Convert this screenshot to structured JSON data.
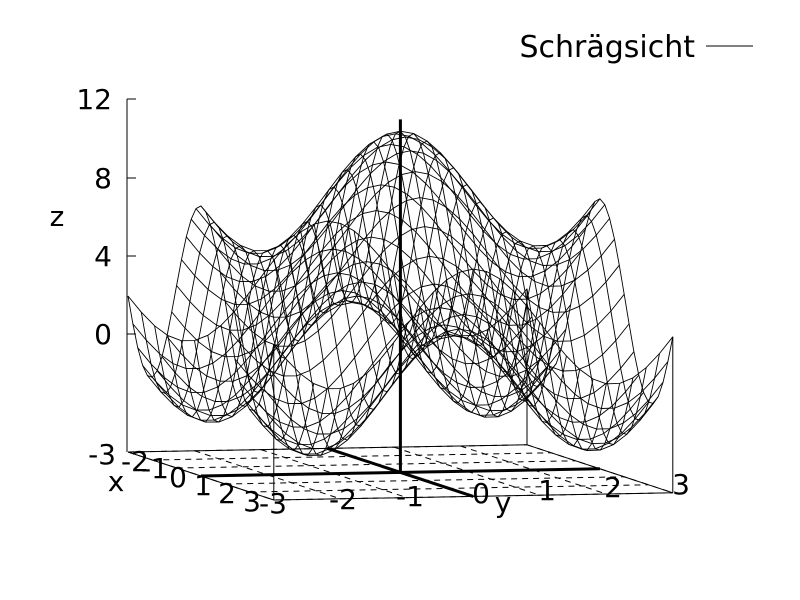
{
  "chart_data": {
    "type": "surface",
    "legend": {
      "label": "Schrägsicht",
      "position": "top-right"
    },
    "zlabel": "z",
    "xlabel": "x",
    "ylabel": "y",
    "z_ticks": [
      "12",
      "8",
      "4",
      "0",
      "-3"
    ],
    "x_ticks": [
      "-2",
      "-1",
      "0",
      "1",
      "2",
      "3"
    ],
    "y_ticks": [
      "-3",
      "-2",
      "-1",
      "0",
      "1",
      "2",
      "3"
    ],
    "xlim": [
      -3,
      3
    ],
    "ylim": [
      -3,
      3
    ],
    "zlim": [
      -3,
      12
    ],
    "grid": true,
    "mesh": {
      "function": "z = 5 + 4*cos(1.5*x) + 2.5*cos(1.5*y)",
      "x_samples": 31,
      "y_samples": 31
    },
    "color": "#000000"
  }
}
